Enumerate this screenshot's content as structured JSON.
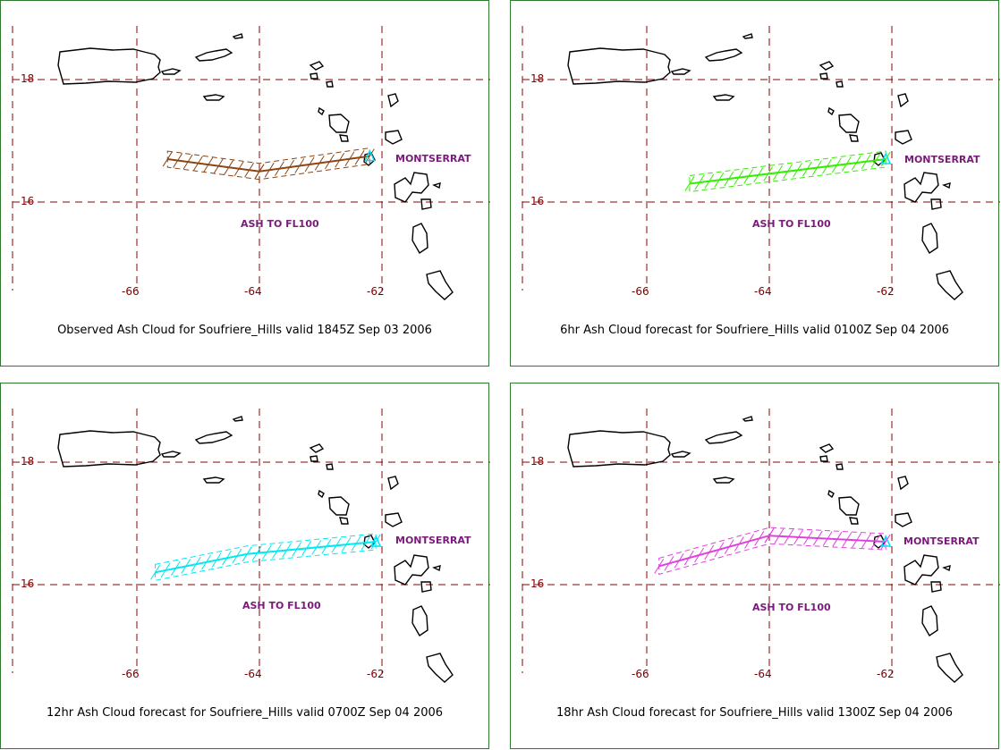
{
  "colors": {
    "grid": "#8b0000",
    "land": "#000000",
    "label": "#7a1a7a",
    "panel_border": "#2f7a2f",
    "volcano": "#00e0ff"
  },
  "axis_labels": {
    "lon": [
      "-66",
      "-64",
      "-62"
    ],
    "lat": [
      "18",
      "16"
    ]
  },
  "map_labels": {
    "montserrat": "MONTSERRAT",
    "ash_level": "ASH TO FL100"
  },
  "panels": [
    {
      "caption": "Observed Ash Cloud for Soufriere_Hills valid 1845Z Sep 03 2006",
      "ash_color": "#8b4513",
      "ash_axis": [
        [
          -65.5,
          16.7
        ],
        [
          -64.0,
          16.5
        ],
        [
          -62.2,
          16.75
        ]
      ]
    },
    {
      "caption": "6hr Ash Cloud forecast for Soufriere_Hills valid 0100Z Sep 04 2006",
      "ash_color": "#33ee00",
      "ash_axis": [
        [
          -65.3,
          16.3
        ],
        [
          -62.1,
          16.7
        ]
      ]
    },
    {
      "caption": "12hr Ash Cloud forecast for Soufriere_Hills valid 0700Z Sep 04 2006",
      "ash_color": "#00e8f0",
      "ash_axis": [
        [
          -65.7,
          16.2
        ],
        [
          -64.2,
          16.5
        ],
        [
          -62.1,
          16.7
        ]
      ]
    },
    {
      "caption": "18hr Ash Cloud forecast for Soufriere_Hills valid 1300Z Sep 04 2006",
      "ash_color": "#e040e0",
      "ash_axis": [
        [
          -65.8,
          16.3
        ],
        [
          -64.0,
          16.8
        ],
        [
          -62.1,
          16.7
        ]
      ]
    }
  ]
}
